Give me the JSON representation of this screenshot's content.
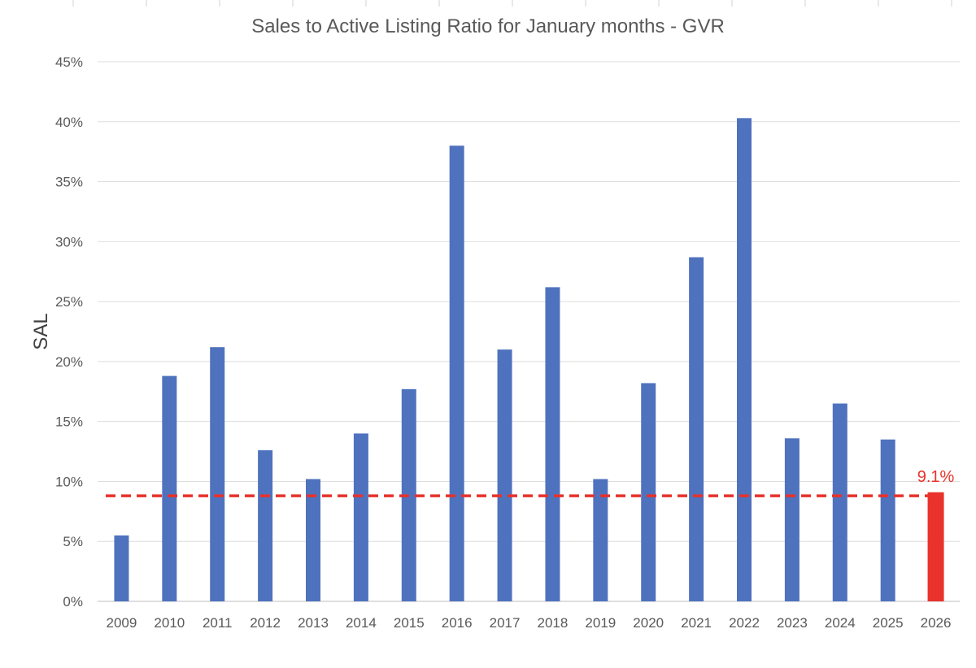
{
  "chart_data": {
    "type": "bar",
    "title": "Sales to Active Listing Ratio for January months - GVR",
    "xlabel": "",
    "ylabel": "SAL",
    "categories": [
      "2009",
      "2010",
      "2011",
      "2012",
      "2013",
      "2014",
      "2015",
      "2016",
      "2017",
      "2018",
      "2019",
      "2020",
      "2021",
      "2022",
      "2023",
      "2024",
      "2025",
      "2026"
    ],
    "series": [
      {
        "values": [
          5.5,
          18.8,
          21.2,
          12.6,
          10.2,
          14.0,
          17.7,
          38.0,
          21.0,
          26.2,
          10.2,
          18.2,
          28.7,
          40.3,
          13.6,
          16.5,
          13.5,
          9.1
        ]
      }
    ],
    "ylim": [
      0,
      45
    ],
    "ytick_labels": [
      "0%",
      "5%",
      "10%",
      "15%",
      "20%",
      "25%",
      "30%",
      "35%",
      "40%",
      "45%"
    ],
    "bar_color": "#4f72be",
    "highlight_color": "#e8322b",
    "highlight_category": "2026",
    "reference_line": {
      "value": 8.8,
      "style": "dashed",
      "color": "#e8322b"
    },
    "annotation": {
      "text": "9.1%",
      "category": "2026"
    },
    "grid": "horizontal",
    "legend": "none"
  }
}
